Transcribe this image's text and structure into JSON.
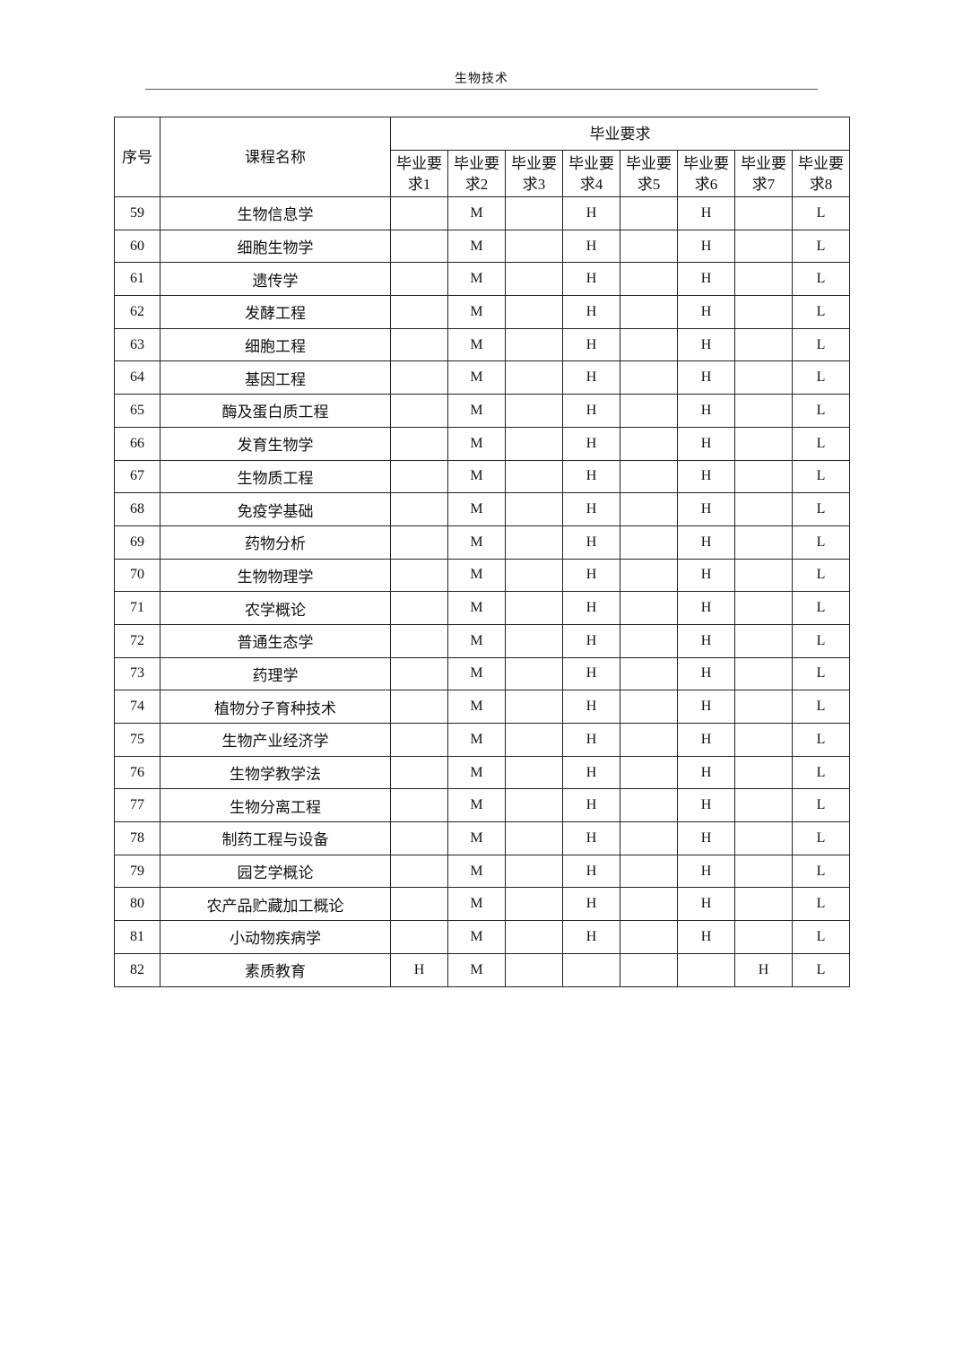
{
  "page_header": "生物技术",
  "table": {
    "col_index": "序号",
    "col_course": "课程名称",
    "group_header": "毕业要求",
    "req_headers": [
      "毕业要求1",
      "毕业要求2",
      "毕业要求3",
      "毕业要求4",
      "毕业要求5",
      "毕业要求6",
      "毕业要求7",
      "毕业要求8"
    ],
    "rows": [
      {
        "no": "59",
        "name": "生物信息学",
        "reqs": [
          "",
          "M",
          "",
          "H",
          "",
          "H",
          "",
          "L"
        ]
      },
      {
        "no": "60",
        "name": "细胞生物学",
        "reqs": [
          "",
          "M",
          "",
          "H",
          "",
          "H",
          "",
          "L"
        ]
      },
      {
        "no": "61",
        "name": "遗传学",
        "reqs": [
          "",
          "M",
          "",
          "H",
          "",
          "H",
          "",
          "L"
        ]
      },
      {
        "no": "62",
        "name": "发酵工程",
        "reqs": [
          "",
          "M",
          "",
          "H",
          "",
          "H",
          "",
          "L"
        ]
      },
      {
        "no": "63",
        "name": "细胞工程",
        "reqs": [
          "",
          "M",
          "",
          "H",
          "",
          "H",
          "",
          "L"
        ]
      },
      {
        "no": "64",
        "name": "基因工程",
        "reqs": [
          "",
          "M",
          "",
          "H",
          "",
          "H",
          "",
          "L"
        ]
      },
      {
        "no": "65",
        "name": "酶及蛋白质工程",
        "reqs": [
          "",
          "M",
          "",
          "H",
          "",
          "H",
          "",
          "L"
        ]
      },
      {
        "no": "66",
        "name": "发育生物学",
        "reqs": [
          "",
          "M",
          "",
          "H",
          "",
          "H",
          "",
          "L"
        ]
      },
      {
        "no": "67",
        "name": "生物质工程",
        "reqs": [
          "",
          "M",
          "",
          "H",
          "",
          "H",
          "",
          "L"
        ]
      },
      {
        "no": "68",
        "name": "免疫学基础",
        "reqs": [
          "",
          "M",
          "",
          "H",
          "",
          "H",
          "",
          "L"
        ]
      },
      {
        "no": "69",
        "name": "药物分析",
        "reqs": [
          "",
          "M",
          "",
          "H",
          "",
          "H",
          "",
          "L"
        ]
      },
      {
        "no": "70",
        "name": "生物物理学",
        "reqs": [
          "",
          "M",
          "",
          "H",
          "",
          "H",
          "",
          "L"
        ]
      },
      {
        "no": "71",
        "name": "农学概论",
        "reqs": [
          "",
          "M",
          "",
          "H",
          "",
          "H",
          "",
          "L"
        ]
      },
      {
        "no": "72",
        "name": "普通生态学",
        "reqs": [
          "",
          "M",
          "",
          "H",
          "",
          "H",
          "",
          "L"
        ]
      },
      {
        "no": "73",
        "name": "药理学",
        "reqs": [
          "",
          "M",
          "",
          "H",
          "",
          "H",
          "",
          "L"
        ]
      },
      {
        "no": "74",
        "name": "植物分子育种技术",
        "reqs": [
          "",
          "M",
          "",
          "H",
          "",
          "H",
          "",
          "L"
        ]
      },
      {
        "no": "75",
        "name": "生物产业经济学",
        "reqs": [
          "",
          "M",
          "",
          "H",
          "",
          "H",
          "",
          "L"
        ]
      },
      {
        "no": "76",
        "name": "生物学教学法",
        "reqs": [
          "",
          "M",
          "",
          "H",
          "",
          "H",
          "",
          "L"
        ]
      },
      {
        "no": "77",
        "name": "生物分离工程",
        "reqs": [
          "",
          "M",
          "",
          "H",
          "",
          "H",
          "",
          "L"
        ]
      },
      {
        "no": "78",
        "name": "制药工程与设备",
        "reqs": [
          "",
          "M",
          "",
          "H",
          "",
          "H",
          "",
          "L"
        ]
      },
      {
        "no": "79",
        "name": "园艺学概论",
        "reqs": [
          "",
          "M",
          "",
          "H",
          "",
          "H",
          "",
          "L"
        ]
      },
      {
        "no": "80",
        "name": "农产品贮藏加工概论",
        "reqs": [
          "",
          "M",
          "",
          "H",
          "",
          "H",
          "",
          "L"
        ]
      },
      {
        "no": "81",
        "name": "小动物疾病学",
        "reqs": [
          "",
          "M",
          "",
          "H",
          "",
          "H",
          "",
          "L"
        ]
      },
      {
        "no": "82",
        "name": "素质教育",
        "reqs": [
          "H",
          "M",
          "",
          "",
          "",
          "",
          "H",
          "L"
        ]
      }
    ]
  }
}
